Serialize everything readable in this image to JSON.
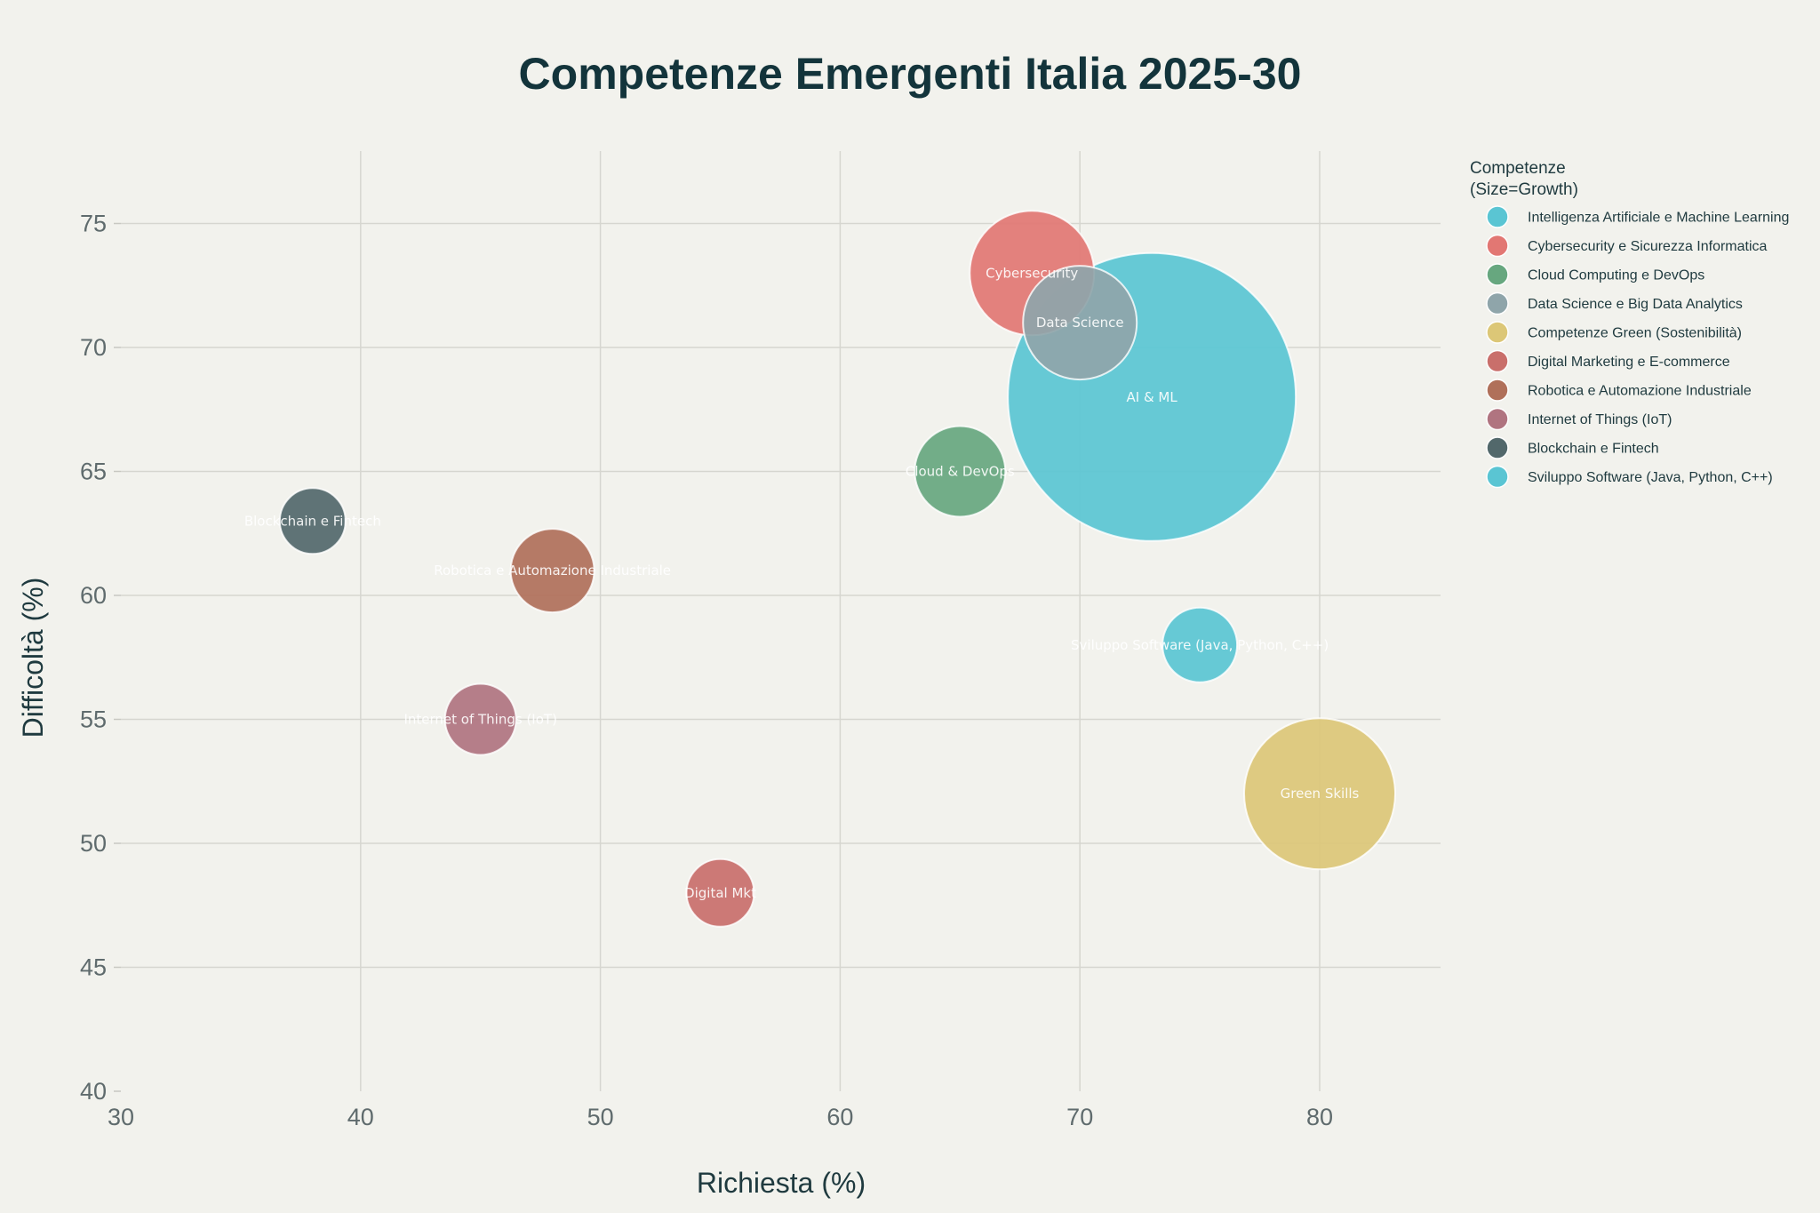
{
  "chart_data": {
    "type": "scatter",
    "title": "Competenze Emergenti Italia 2025-30",
    "xlabel": "Richiesta (%)",
    "ylabel": "Difficoltà (%)",
    "xlim": [
      30,
      85
    ],
    "ylim": [
      40,
      78
    ],
    "xticks": [
      30,
      40,
      50,
      60,
      70,
      80
    ],
    "yticks": [
      40,
      45,
      50,
      55,
      60,
      65,
      70,
      75
    ],
    "grid": true,
    "legend": {
      "title_line1": "Competenze",
      "title_line2": "(Size=Growth)",
      "placement": "right"
    },
    "series": [
      {
        "name": "Intelligenza Artificiale e Machine Learning",
        "label": "AI & ML",
        "x": 73,
        "y": 68,
        "growth": 81,
        "color": "#5ac5d3"
      },
      {
        "name": "Cybersecurity e Sicurezza Informatica",
        "label": "Cybersecurity",
        "x": 68,
        "y": 73,
        "growth": 35,
        "color": "#e27773"
      },
      {
        "name": "Cloud Computing e DevOps",
        "label": "Cloud & DevOps",
        "x": 65,
        "y": 65,
        "growth": 25.5,
        "color": "#67a77f"
      },
      {
        "name": "Data Science e Big Data Analytics",
        "label": "Data Science",
        "x": 70,
        "y": 71,
        "growth": 32,
        "color": "#8fa5aa"
      },
      {
        "name": "Competenze Green (Sostenibilità)",
        "label": "Green Skills",
        "x": 80,
        "y": 52,
        "growth": 42.5,
        "color": "#dcc777"
      },
      {
        "name": "Digital Marketing e E-commerce",
        "label": "Digital Mkt",
        "x": 55,
        "y": 48,
        "growth": 19,
        "color": "#c96f6b"
      },
      {
        "name": "Robotica e Automazione Industriale",
        "label": "Robotica e Automazione Industriale",
        "x": 48,
        "y": 61,
        "growth": 23.5,
        "color": "#b0705a"
      },
      {
        "name": "Internet of Things (IoT)",
        "label": "Internet of Things (IoT)",
        "x": 45,
        "y": 55,
        "growth": 20,
        "color": "#b07480"
      },
      {
        "name": "Blockchain e Fintech",
        "label": "Blockchain e Fintech",
        "x": 38,
        "y": 63,
        "growth": 18.5,
        "color": "#52686b"
      },
      {
        "name": "Sviluppo Software (Java, Python, C++)",
        "label": "Sviluppo Software (Java, Python, C++)",
        "x": 75,
        "y": 58,
        "growth": 21,
        "color": "#5ac5d3"
      }
    ]
  }
}
